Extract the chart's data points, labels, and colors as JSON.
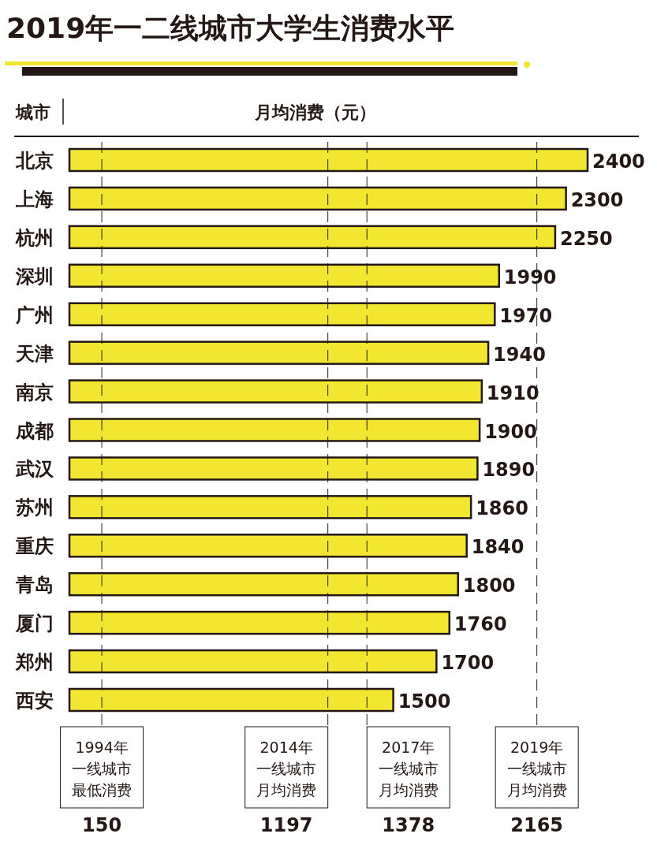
{
  "chart_data": {
    "type": "bar",
    "orientation": "horizontal",
    "title": "2019年一二线城市大学生消费水平",
    "ylabel": "城市",
    "xlabel": "月均消费（元）",
    "categories": [
      "北京",
      "上海",
      "杭州",
      "深圳",
      "广州",
      "天津",
      "南京",
      "成都",
      "武汉",
      "苏州",
      "重庆",
      "青岛",
      "厦门",
      "郑州",
      "西安"
    ],
    "values": [
      2400,
      2300,
      2250,
      1990,
      1970,
      1940,
      1910,
      1900,
      1890,
      1860,
      1840,
      1800,
      1760,
      1700,
      1500
    ],
    "color": "#f2e630",
    "xlim": [
      0,
      2400
    ],
    "data_labels": true,
    "annotations": [
      "150",
      "1197",
      "1378",
      "2165"
    ],
    "ref_lines": [
      {
        "axis": "x",
        "value": 150,
        "label": "1994年一线城市最低消费",
        "color": "#222222",
        "line_style": "dashed"
      },
      {
        "axis": "x",
        "value": 1197,
        "label": "2014年一线城市月均消费",
        "color": "#222222",
        "line_style": "dashed"
      },
      {
        "axis": "x",
        "value": 1378,
        "label": "2017年一线城市月均消费",
        "color": "#222222",
        "line_style": "dashed"
      },
      {
        "axis": "x",
        "value": 2165,
        "label": "2019年一线城市月均消费",
        "color": "#222222",
        "line_style": "dashed"
      }
    ]
  }
}
